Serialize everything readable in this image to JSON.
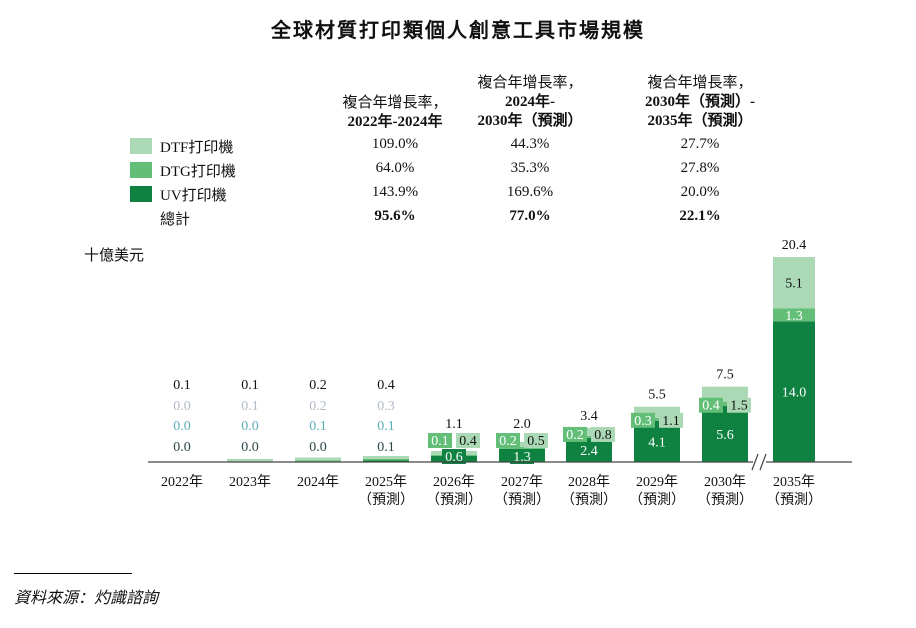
{
  "title": "全球材質打印類個人創意工具市場規模",
  "cagr_table": {
    "headers": [
      {
        "line1": "複合年增長率，",
        "line2": "2022年-2024年",
        "line3": ""
      },
      {
        "line1": "複合年增長率，",
        "line2": "2024年-",
        "line3": "2030年（預測）"
      },
      {
        "line1": "複合年增長率，",
        "line2": "2030年（預測）-",
        "line3": "2035年（預測）"
      }
    ],
    "rows": [
      {
        "label": "DTF打印機",
        "values": [
          "109.0%",
          "44.3%",
          "27.7%"
        ]
      },
      {
        "label": "DTG打印機",
        "values": [
          "64.0%",
          "35.3%",
          "27.8%"
        ]
      },
      {
        "label": "UV打印機",
        "values": [
          "143.9%",
          "169.6%",
          "20.0%"
        ]
      },
      {
        "label": "總計",
        "values": [
          "95.6%",
          "77.0%",
          "22.1%"
        ]
      }
    ]
  },
  "unit": "十億美元",
  "source": "資料來源：灼識諮詢",
  "colors": {
    "DTF": "#acd9b5",
    "DTG": "#63bf78",
    "UV": "#0f8241",
    "DTF_text": "#b0bac6",
    "DTG_text": "#5aaeb8",
    "UV_text": "#2b4747"
  },
  "chart_data": {
    "type": "bar",
    "stacked": true,
    "categories": [
      "2022年",
      "2023年",
      "2024年",
      "2025年",
      "2026年",
      "2027年",
      "2028年",
      "2029年",
      "2030年",
      "2035年"
    ],
    "category_sublabels": [
      "",
      "",
      "",
      "（預測）",
      "（預測）",
      "（預測）",
      "（預測）",
      "（預測）",
      "（預測）",
      "（預測）"
    ],
    "series": [
      {
        "name": "UV打印機",
        "values": [
          0.0,
          0.0,
          0.0,
          0.1,
          0.6,
          1.3,
          2.4,
          4.1,
          5.6,
          14.0
        ]
      },
      {
        "name": "DTG打印機",
        "values": [
          0.0,
          0.0,
          0.1,
          0.1,
          0.1,
          0.2,
          0.2,
          0.3,
          0.4,
          1.3
        ]
      },
      {
        "name": "DTF打印機",
        "values": [
          0.0,
          0.1,
          0.2,
          0.3,
          0.4,
          0.5,
          0.8,
          1.1,
          1.5,
          5.1
        ]
      }
    ],
    "totals": [
      0.1,
      0.1,
      0.2,
      0.4,
      1.1,
      2.0,
      3.4,
      5.5,
      7.5,
      20.4
    ],
    "axis_break_before": "2035年",
    "ylabel": "十億美元",
    "grid": false
  }
}
